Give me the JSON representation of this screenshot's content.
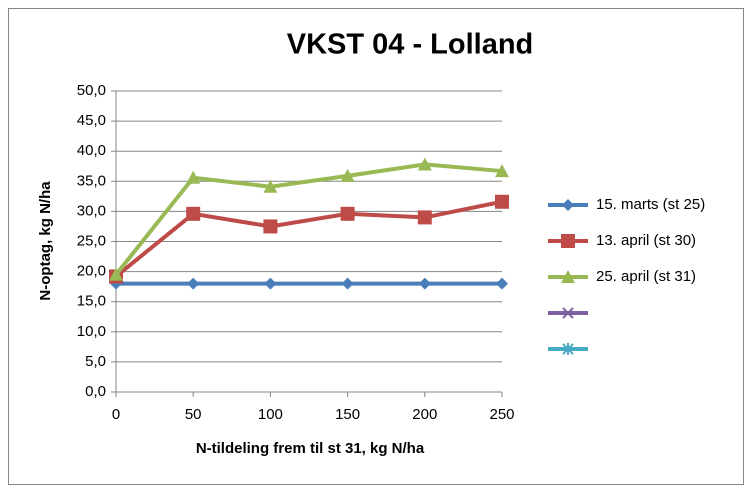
{
  "chart_data": {
    "type": "line",
    "title": "VKST 04 - Lolland",
    "x_label": "N-tildeling frem til st 31, kg N/ha",
    "y_label": "N-optag, kg N/ha",
    "x": [
      0,
      50,
      100,
      150,
      200,
      250
    ],
    "xlim": [
      0,
      250
    ],
    "xticks": [
      0,
      50,
      100,
      150,
      200,
      250
    ],
    "ylim": [
      0,
      50
    ],
    "yticks": [
      {
        "value": 0,
        "label": "0,0"
      },
      {
        "value": 5,
        "label": "5,0"
      },
      {
        "value": 10,
        "label": "10,0"
      },
      {
        "value": 15,
        "label": "15,0"
      },
      {
        "value": 20,
        "label": "20,0"
      },
      {
        "value": 25,
        "label": "25,0"
      },
      {
        "value": 30,
        "label": "30,0"
      },
      {
        "value": 35,
        "label": "35,0"
      },
      {
        "value": 40,
        "label": "40,0"
      },
      {
        "value": 45,
        "label": "45,0"
      },
      {
        "value": 50,
        "label": "50,0"
      }
    ],
    "grid": true,
    "legend": "right",
    "series": [
      {
        "name": "15. marts (st 25)",
        "color": "#4a7ebb",
        "marker": "diamond",
        "values": [
          18,
          18,
          18,
          18,
          18,
          18
        ]
      },
      {
        "name": "13. april (st 30)",
        "color": "#be4b48",
        "marker": "square",
        "values": [
          19.2,
          29.6,
          27.5,
          29.6,
          29.0,
          31.6
        ]
      },
      {
        "name": "25. april (st 31)",
        "color": "#98b954",
        "marker": "triangle",
        "values": [
          19.5,
          35.6,
          34.1,
          35.9,
          37.8,
          36.7
        ]
      }
    ]
  }
}
